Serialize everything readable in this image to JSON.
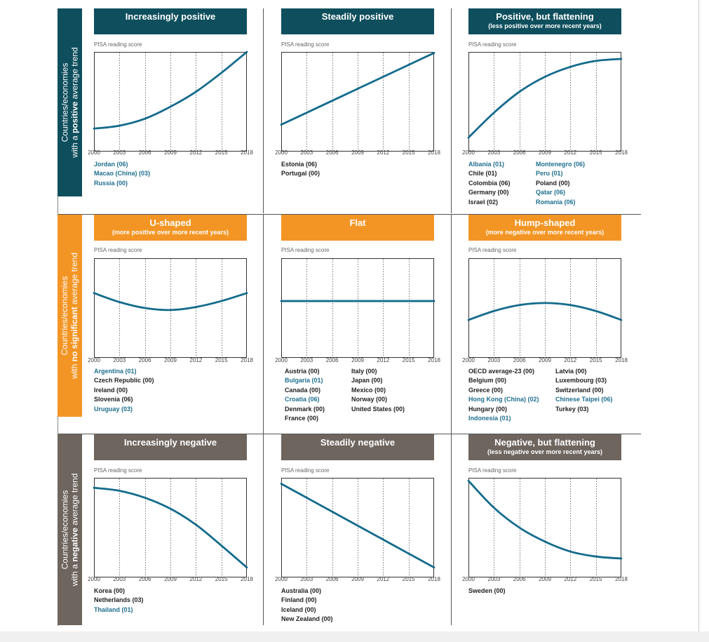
{
  "colors": {
    "positive": "#0f4f5d",
    "no_significant": "#f39524",
    "negative": "#6e655f",
    "curve": "#136b8c",
    "country_blue": "#1f6f8e",
    "country_black": "#222222"
  },
  "rows": [
    {
      "label_pre": "Countries/economies",
      "label_a": "with a ",
      "label_bold": "positive",
      "label_b": " average trend"
    },
    {
      "label_pre": "Countries/economies",
      "label_a": "with ",
      "label_bold": "no significant",
      "label_b": " average trend"
    },
    {
      "label_pre": "Countries/economies",
      "label_a": "with a ",
      "label_bold": "negative",
      "label_b": " average trend"
    }
  ],
  "panels": [
    {
      "title": "Increasingly positive",
      "subtitle": "",
      "ylabel": "PISA reading score",
      "countries": [
        [
          "Jordan (06)|blue",
          "Macao (China) (03)|blue",
          "Russia (00)|blue"
        ]
      ]
    },
    {
      "title": "Steadily positive",
      "subtitle": "",
      "ylabel": "PISA reading score",
      "countries": [
        [
          "Estonia (06)|black",
          "Portugal (00)|black"
        ]
      ]
    },
    {
      "title": "Positive, but flattening",
      "subtitle": "(less positive over more recent years)",
      "ylabel": "PISA reading score",
      "countries": [
        [
          "Albania (01)|blue",
          "Chile (01)|black",
          "Colombia (06)|black",
          "Germany (00)|black",
          "Israel (02)|black"
        ],
        [
          "Montenegro (06)|blue",
          "Peru (01)|blue",
          "Poland (00)|black",
          "Qatar (06)|blue",
          "Romania (06)|blue"
        ]
      ]
    },
    {
      "title": "U-shaped",
      "subtitle": "(more positive over more recent years)",
      "ylabel": "PISA reading score",
      "countries": [
        [
          "Argentina (01)|blue",
          "Czech Republic (00)|black",
          "Ireland (00)|black",
          "Slovenia (06)|black",
          "Uruguay (03)|blue"
        ]
      ]
    },
    {
      "title": "Flat",
      "subtitle": "",
      "ylabel": "PISA reading score",
      "countries": [
        [
          "Austria (00)|black",
          "Bulgaria (01)|blue",
          "Canada (00)|black",
          "Croatia (06)|blue",
          "Denmark (00)|black",
          "France (00)|black"
        ],
        [
          "Italy (00)|black",
          "Japan (00)|black",
          "Mexico (00)|black",
          "Norway (00)|black",
          "United States (00)|black"
        ]
      ]
    },
    {
      "title": "Hump-shaped",
      "subtitle": "(more negative over more recent years)",
      "ylabel": "PISA reading score",
      "countries": [
        [
          "OECD average-23 (00)|black",
          "Belgium (00)|black",
          "Greece (00)|black",
          "Hong Kong (China) (02)|blue",
          "Hungary (00)|black",
          "Indonesia (01)|blue"
        ],
        [
          "Latvia (00)|black",
          "Luxembourg (03)|black",
          "Switzerland (00)|black",
          "Chinese Taipei (06)|blue",
          "Turkey (03)|black"
        ]
      ]
    },
    {
      "title": "Increasingly negative",
      "subtitle": "",
      "ylabel": "PISA reading score",
      "countries": [
        [
          "Korea (00)|black",
          "Netherlands (03)|black",
          "Thailand (01)|blue"
        ]
      ]
    },
    {
      "title": "Steadily negative",
      "subtitle": "",
      "ylabel": "PISA reading score",
      "countries": [
        [
          "Australia (00)|black",
          "Finland (00)|black",
          "Iceland (00)|black",
          "New Zealand (00)|black"
        ]
      ]
    },
    {
      "title": "Negative, but flattening",
      "subtitle": "(less negative over more recent years)",
      "ylabel": "PISA reading score",
      "countries": [
        [
          "Sweden (00)|black"
        ]
      ]
    }
  ],
  "chart_data": [
    {
      "type": "line",
      "title": "Increasingly positive",
      "ylabel": "PISA reading score",
      "x": [
        2000,
        2003,
        2006,
        2009,
        2012,
        2015,
        2018
      ],
      "xlim": [
        2000,
        2018
      ],
      "ylim": [
        0,
        1
      ],
      "series": [
        {
          "values": [
            0.23,
            0.26,
            0.33,
            0.45,
            0.6,
            0.79,
            1.0
          ]
        }
      ]
    },
    {
      "type": "line",
      "title": "Steadily positive",
      "ylabel": "PISA reading score",
      "x": [
        2000,
        2003,
        2006,
        2009,
        2012,
        2015,
        2018
      ],
      "xlim": [
        2000,
        2018
      ],
      "ylim": [
        0,
        1
      ],
      "series": [
        {
          "values": [
            0.27,
            0.39,
            0.51,
            0.63,
            0.75,
            0.87,
            0.99
          ]
        }
      ]
    },
    {
      "type": "line",
      "title": "Positive, but flattening",
      "ylabel": "PISA reading score",
      "x": [
        2000,
        2003,
        2006,
        2009,
        2012,
        2015,
        2018
      ],
      "xlim": [
        2000,
        2018
      ],
      "ylim": [
        0,
        1
      ],
      "series": [
        {
          "values": [
            0.14,
            0.39,
            0.6,
            0.75,
            0.85,
            0.91,
            0.93
          ]
        }
      ]
    },
    {
      "type": "line",
      "title": "U-shaped",
      "ylabel": "PISA reading score",
      "x": [
        2000,
        2003,
        2006,
        2009,
        2012,
        2015,
        2018
      ],
      "xlim": [
        2000,
        2018
      ],
      "ylim": [
        0,
        1
      ],
      "series": [
        {
          "values": [
            0.65,
            0.56,
            0.5,
            0.48,
            0.51,
            0.57,
            0.65
          ]
        }
      ]
    },
    {
      "type": "line",
      "title": "Flat",
      "ylabel": "PISA reading score",
      "x": [
        2000,
        2003,
        2006,
        2009,
        2012,
        2015,
        2018
      ],
      "xlim": [
        2000,
        2018
      ],
      "ylim": [
        0,
        1
      ],
      "series": [
        {
          "values": [
            0.57,
            0.57,
            0.57,
            0.57,
            0.57,
            0.57,
            0.57
          ]
        }
      ]
    },
    {
      "type": "line",
      "title": "Hump-shaped",
      "ylabel": "PISA reading score",
      "x": [
        2000,
        2003,
        2006,
        2009,
        2012,
        2015,
        2018
      ],
      "xlim": [
        2000,
        2018
      ],
      "ylim": [
        0,
        1
      ],
      "series": [
        {
          "values": [
            0.38,
            0.47,
            0.53,
            0.55,
            0.53,
            0.47,
            0.38
          ]
        }
      ]
    },
    {
      "type": "line",
      "title": "Increasingly negative",
      "ylabel": "PISA reading score",
      "x": [
        2000,
        2003,
        2006,
        2009,
        2012,
        2015,
        2018
      ],
      "xlim": [
        2000,
        2018
      ],
      "ylim": [
        0,
        1
      ],
      "series": [
        {
          "values": [
            0.9,
            0.87,
            0.8,
            0.69,
            0.53,
            0.32,
            0.1
          ]
        }
      ]
    },
    {
      "type": "line",
      "title": "Steadily negative",
      "ylabel": "PISA reading score",
      "x": [
        2000,
        2003,
        2006,
        2009,
        2012,
        2015,
        2018
      ],
      "xlim": [
        2000,
        2018
      ],
      "ylim": [
        0,
        1
      ],
      "series": [
        {
          "values": [
            0.94,
            0.8,
            0.66,
            0.52,
            0.38,
            0.24,
            0.1
          ]
        }
      ]
    },
    {
      "type": "line",
      "title": "Negative, but flattening",
      "ylabel": "PISA reading score",
      "x": [
        2000,
        2003,
        2006,
        2009,
        2012,
        2015,
        2018
      ],
      "xlim": [
        2000,
        2018
      ],
      "ylim": [
        0,
        1
      ],
      "series": [
        {
          "values": [
            0.97,
            0.7,
            0.5,
            0.36,
            0.26,
            0.21,
            0.19
          ]
        }
      ]
    }
  ],
  "xticks": [
    "2000",
    "2003",
    "2006",
    "2009",
    "2012",
    "2015",
    "2018"
  ]
}
